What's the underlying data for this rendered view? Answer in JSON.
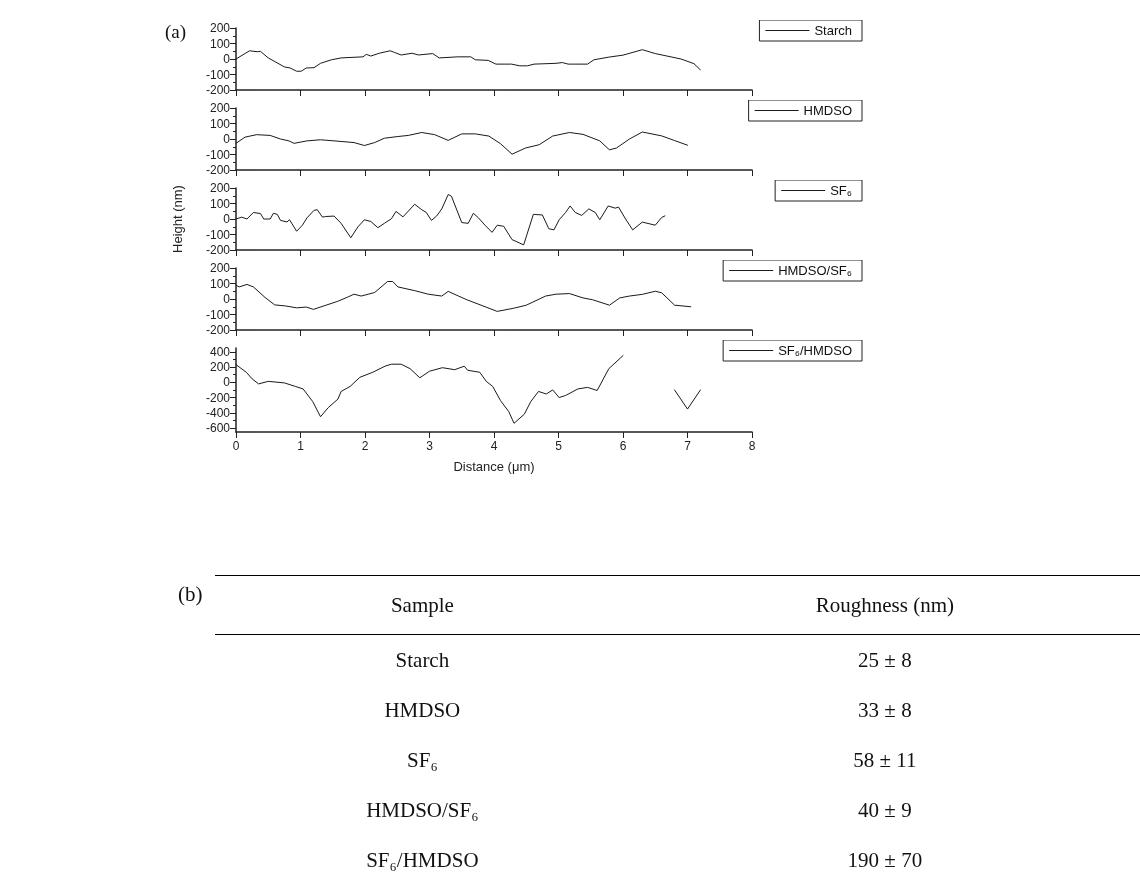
{
  "chart_data": [
    {
      "type": "line",
      "annotations": [
        "(a)"
      ],
      "xlim": [
        0,
        8
      ],
      "xticks": [
        0,
        1,
        2,
        3,
        4,
        5,
        6,
        7,
        8
      ],
      "ylim": [
        -200,
        200
      ],
      "yticks": [
        -200,
        -100,
        0,
        100,
        200
      ],
      "tick_labels": "y",
      "grid": false,
      "legend": "top right",
      "marker": "none",
      "series": [
        {
          "name": "Starch",
          "color": "#1a1a1a",
          "x": [
            0,
            0.21,
            0.33,
            0.38,
            0.5,
            0.75,
            0.84,
            0.94,
            1.01,
            1.09,
            1.21,
            1.31,
            1.48,
            1.63,
            1.97,
            2.02,
            2.09,
            2.22,
            2.39,
            2.46,
            2.56,
            2.73,
            2.83,
            3.05,
            3.15,
            3.44,
            3.64,
            3.71,
            3.91,
            4.03,
            4.27,
            4.4,
            4.52,
            4.62,
            4.96,
            5.06,
            5.15,
            5.45,
            5.55,
            5.78,
            6.0,
            6.3,
            6.5,
            6.9,
            7.1,
            7.2
          ],
          "values": [
            0,
            53,
            47,
            49,
            7,
            -51,
            -58,
            -79,
            -79,
            -58,
            -56,
            -28,
            -5,
            7,
            14,
            30,
            19,
            37,
            53,
            42,
            26,
            37,
            26,
            35,
            7,
            14,
            14,
            -5,
            -9,
            -33,
            -33,
            -44,
            -44,
            -33,
            -28,
            -23,
            -33,
            -33,
            -5,
            12,
            25,
            60,
            35,
            0,
            -30,
            -70
          ]
        }
      ]
    },
    {
      "type": "line",
      "xlim": [
        0,
        8
      ],
      "xticks": [
        0,
        1,
        2,
        3,
        4,
        5,
        6,
        7,
        8
      ],
      "ylim": [
        -200,
        200
      ],
      "yticks": [
        -200,
        -100,
        0,
        100,
        200
      ],
      "tick_labels": "y",
      "grid": false,
      "legend": "top right",
      "marker": "none",
      "series": [
        {
          "name": "HMDSO",
          "color": "#1a1a1a",
          "x": [
            0,
            0.14,
            0.32,
            0.53,
            0.69,
            0.82,
            0.9,
            1.1,
            1.31,
            1.52,
            1.83,
            1.99,
            2.15,
            2.3,
            2.51,
            2.67,
            2.88,
            3.08,
            3.29,
            3.5,
            3.71,
            3.92,
            4.1,
            4.28,
            4.49,
            4.7,
            4.91,
            5.17,
            5.38,
            5.64,
            5.79,
            5.9,
            6.1,
            6.3,
            6.6,
            6.8,
            7.0
          ],
          "values": [
            -28,
            12,
            28,
            23,
            0,
            -12,
            -28,
            -12,
            -5,
            -12,
            -23,
            -42,
            -23,
            5,
            16,
            23,
            42,
            28,
            -9,
            33,
            33,
            19,
            -30,
            -98,
            -58,
            -37,
            19,
            42,
            30,
            -12,
            -70,
            -58,
            0,
            45,
            20,
            -10,
            -40
          ]
        }
      ]
    },
    {
      "type": "line",
      "ylabel": "Height (nm)",
      "xlim": [
        0,
        8
      ],
      "xticks": [
        0,
        1,
        2,
        3,
        4,
        5,
        6,
        7,
        8
      ],
      "ylim": [
        -200,
        200
      ],
      "yticks": [
        -200,
        -100,
        0,
        100,
        200
      ],
      "tick_labels": "y",
      "grid": false,
      "legend": "top right",
      "marker": "none",
      "series": [
        {
          "name": "SF₆",
          "color": "#1a1a1a",
          "x": [
            0,
            0.09,
            0.17,
            0.27,
            0.38,
            0.43,
            0.53,
            0.58,
            0.64,
            0.69,
            0.79,
            0.83,
            0.94,
            1.03,
            1.1,
            1.21,
            1.26,
            1.34,
            1.39,
            1.52,
            1.63,
            1.78,
            1.89,
            1.99,
            2.09,
            2.2,
            2.3,
            2.41,
            2.48,
            2.59,
            2.77,
            2.88,
            2.95,
            3.03,
            3.11,
            3.19,
            3.29,
            3.34,
            3.5,
            3.6,
            3.68,
            3.76,
            3.86,
            3.97,
            4.05,
            4.15,
            4.28,
            4.46,
            4.61,
            4.75,
            4.85,
            4.93,
            5.01,
            5.11,
            5.18,
            5.26,
            5.36,
            5.47,
            5.57,
            5.64,
            5.77,
            5.88,
            5.93,
            6.04,
            6.15,
            6.3,
            6.5,
            6.6,
            6.65
          ],
          "values": [
            0,
            12,
            0,
            42,
            35,
            0,
            0,
            37,
            30,
            -9,
            -19,
            -5,
            -79,
            -40,
            7,
            56,
            60,
            12,
            16,
            19,
            -28,
            -121,
            -51,
            -5,
            -16,
            -56,
            -28,
            2,
            49,
            14,
            95,
            60,
            42,
            -9,
            19,
            65,
            158,
            147,
            -23,
            -28,
            37,
            7,
            -40,
            -86,
            -40,
            -47,
            -133,
            -167,
            30,
            26,
            -63,
            -70,
            -5,
            42,
            84,
            42,
            23,
            65,
            42,
            -5,
            84,
            70,
            77,
            0,
            -70,
            -20,
            -40,
            10,
            20
          ]
        }
      ]
    },
    {
      "type": "line",
      "xlim": [
        0,
        8
      ],
      "xticks": [
        0,
        1,
        2,
        3,
        4,
        5,
        6,
        7,
        8
      ],
      "ylim": [
        -200,
        200
      ],
      "yticks": [
        -200,
        -100,
        0,
        100,
        200
      ],
      "tick_labels": "y",
      "grid": false,
      "legend": "top right",
      "marker": "none",
      "series": [
        {
          "name": "HMDSO/SF₆",
          "color": "#1a1a1a",
          "x": [
            0,
            0.05,
            0.17,
            0.27,
            0.45,
            0.6,
            0.77,
            0.94,
            1.09,
            1.2,
            1.41,
            1.57,
            1.73,
            1.83,
            1.94,
            2.15,
            2.35,
            2.43,
            2.51,
            2.77,
            2.98,
            3.19,
            3.29,
            3.45,
            3.58,
            3.8,
            4.05,
            4.3,
            4.5,
            4.8,
            4.96,
            5.17,
            5.38,
            5.53,
            5.79,
            5.95,
            6.1,
            6.3,
            6.5,
            6.6,
            6.8,
            7.05
          ],
          "values": [
            89,
            78,
            94,
            78,
            10,
            -38,
            -45,
            -57,
            -52,
            -67,
            -38,
            -16,
            12,
            31,
            19,
            42,
            113,
            113,
            78,
            54,
            31,
            19,
            49,
            19,
            -5,
            -40,
            -80,
            -60,
            -40,
            19,
            31,
            35,
            7,
            -5,
            -40,
            7,
            19,
            30,
            50,
            40,
            -40,
            -50
          ]
        }
      ]
    },
    {
      "type": "line",
      "xlabel": "Distance (μm)",
      "xlim": [
        0,
        8
      ],
      "xticks": [
        0,
        1,
        2,
        3,
        4,
        5,
        6,
        7,
        8
      ],
      "ylim": [
        -650,
        450
      ],
      "yticks": [
        -600,
        -400,
        -200,
        0,
        200,
        400
      ],
      "grid": false,
      "legend": "top right",
      "marker": "none",
      "series": [
        {
          "name": "SF₆/HMDSO",
          "color": "#1a1a1a",
          "x": [
            0,
            0.16,
            0.25,
            0.35,
            0.5,
            0.75,
            0.92,
            1.04,
            1.19,
            1.31,
            1.43,
            1.58,
            1.63,
            1.77,
            1.92,
            2.12,
            2.31,
            2.41,
            2.56,
            2.7,
            2.85,
            3.0,
            3.2,
            3.39,
            3.54,
            3.59,
            3.78,
            3.88,
            3.98,
            4.1,
            4.23,
            4.31,
            4.47,
            4.57,
            4.69,
            4.81,
            4.91,
            5.01,
            5.11,
            5.3,
            5.45,
            5.6,
            5.78,
            6.0,
            6.3,
            6.5,
            6.8,
            7.0,
            7.2
          ],
          "values": [
            232,
            132,
            46,
            -20,
            13,
            -7,
            -53,
            -86,
            -252,
            -450,
            -331,
            -219,
            -119,
            -53,
            66,
            132,
            212,
            238,
            238,
            179,
            60,
            146,
            192,
            166,
            212,
            159,
            132,
            13,
            -53,
            -238,
            -384,
            -536,
            -417,
            -252,
            -119,
            -152,
            -99,
            -199,
            -172,
            -86,
            -66,
            -106,
            179,
            350,
            null,
            null,
            -100,
            -350,
            -100
          ]
        }
      ]
    },
    {
      "type": "other",
      "title": "(b)",
      "xlabel": "Sample",
      "ylabel": "Roughness (nm)",
      "categories": [
        "Starch",
        "HMDSO",
        "SF₆",
        "HMDSO/SF₆",
        "SF₆/HMDSO"
      ],
      "value_labels": [
        "25 ± 8",
        "33 ± 8",
        "58 ± 11",
        "40 ± 9",
        "190 ± 70"
      ]
    }
  ]
}
